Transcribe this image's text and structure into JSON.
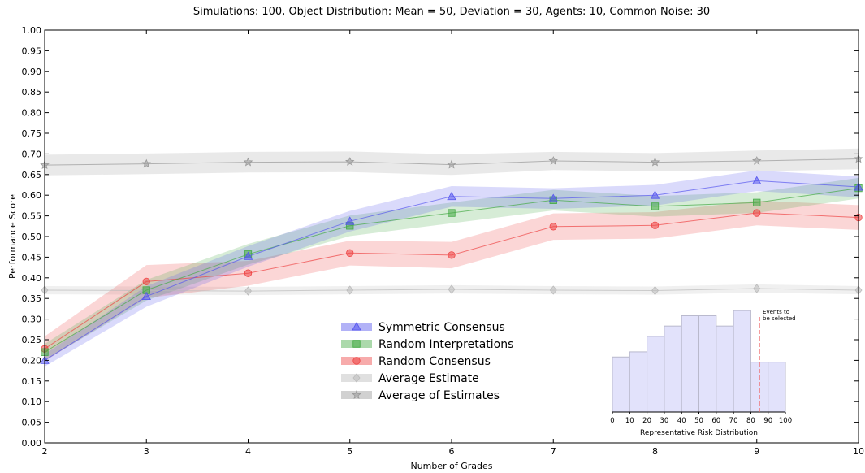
{
  "chart_data": {
    "type": "line",
    "title": "Simulations: 100, Object Distribution: Mean = 50, Deviation = 30, Agents: 10, Common Noise: 30",
    "xlabel": "Number of Grades",
    "ylabel": "Performance Score",
    "xlim": [
      2,
      10
    ],
    "ylim": [
      0,
      1
    ],
    "x_ticks": [
      "2",
      "3",
      "4",
      "5",
      "6",
      "7",
      "8",
      "9",
      "10"
    ],
    "y_ticks": [
      "0.00",
      "0.05",
      "0.10",
      "0.15",
      "0.20",
      "0.25",
      "0.30",
      "0.35",
      "0.40",
      "0.45",
      "0.50",
      "0.55",
      "0.60",
      "0.65",
      "0.70",
      "0.75",
      "0.80",
      "0.85",
      "0.90",
      "0.95",
      "1.00"
    ],
    "grid": false,
    "legend_position": "center",
    "x": [
      2,
      3,
      4,
      5,
      6,
      7,
      8,
      9,
      10
    ],
    "series": [
      {
        "name": "Symmetric Consensus",
        "color": "#5555ee",
        "marker": "triangle",
        "values": [
          0.2,
          0.355,
          0.452,
          0.537,
          0.597,
          0.592,
          0.6,
          0.635,
          0.62
        ],
        "band": [
          0.015,
          0.025,
          0.025,
          0.025,
          0.025,
          0.025,
          0.025,
          0.025,
          0.025
        ]
      },
      {
        "name": "Random Interpretations",
        "color": "#44aa44",
        "marker": "square",
        "values": [
          0.22,
          0.37,
          0.457,
          0.526,
          0.557,
          0.588,
          0.573,
          0.582,
          0.617
        ],
        "band": [
          0.02,
          0.025,
          0.025,
          0.025,
          0.025,
          0.025,
          0.025,
          0.025,
          0.025
        ]
      },
      {
        "name": "Random Consensus",
        "color": "#ee4444",
        "marker": "circle",
        "values": [
          0.228,
          0.391,
          0.411,
          0.46,
          0.455,
          0.524,
          0.527,
          0.557,
          0.546
        ],
        "band": [
          0.03,
          0.04,
          0.03,
          0.03,
          0.032,
          0.032,
          0.032,
          0.03,
          0.03
        ]
      },
      {
        "name": "Average Estimate",
        "color": "#bbbbbb",
        "marker": "diamond",
        "values": [
          0.37,
          0.369,
          0.368,
          0.37,
          0.372,
          0.37,
          0.369,
          0.374,
          0.37
        ],
        "band": [
          0.01,
          0.01,
          0.01,
          0.01,
          0.01,
          0.01,
          0.01,
          0.01,
          0.01
        ]
      },
      {
        "name": "Average of Estimates",
        "color": "#999999",
        "marker": "star",
        "values": [
          0.673,
          0.676,
          0.68,
          0.681,
          0.674,
          0.683,
          0.68,
          0.683,
          0.688
        ],
        "band": [
          0.025,
          0.025,
          0.025,
          0.025,
          0.025,
          0.022,
          0.022,
          0.025,
          0.025
        ]
      }
    ],
    "inset": {
      "type": "histogram",
      "xlabel": "Representative Risk Distribution",
      "x_ticks": [
        "0",
        "10",
        "20",
        "30",
        "40",
        "50",
        "60",
        "70",
        "80",
        "90",
        "100"
      ],
      "bins": [
        0,
        10,
        20,
        30,
        40,
        50,
        60,
        70,
        80,
        90,
        100
      ],
      "values": [
        0.16,
        0.175,
        0.22,
        0.25,
        0.28,
        0.28,
        0.25,
        0.295,
        0.145,
        0.145
      ],
      "threshold": 85,
      "annotation": "Events to be selected",
      "annotation_lines": [
        "Events to",
        "be selected"
      ]
    }
  }
}
